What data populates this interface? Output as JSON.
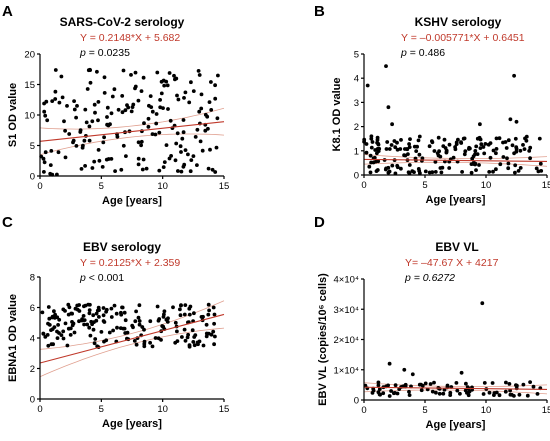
{
  "chart_data": [
    {
      "type": "scatter",
      "panel": "A",
      "title": "SARS-CoV-2 serology",
      "equation": "Y = 0.2148*X + 5.682",
      "p_label": "p",
      "p_rest": " = 0.0235",
      "p_italic_rest": false,
      "xlabel": "Age [years]",
      "ylabel": "S1 OD value",
      "xlim": [
        0,
        15
      ],
      "ylim": [
        0,
        20
      ],
      "xticks": [
        0,
        5,
        10,
        15
      ],
      "yticks": [
        0,
        5,
        10,
        15,
        20
      ],
      "ytick_labels": [
        "0",
        "5",
        "10",
        "15",
        "20"
      ],
      "fit": {
        "slope": 0.2148,
        "intercept": 5.682
      },
      "band_spread": [
        0.9,
        2.2
      ],
      "scatter_seed": 11,
      "n_points": 200,
      "point_y_range": [
        0.2,
        17.5
      ],
      "color_fit": "#c0392b",
      "color_band": "#e0a090"
    },
    {
      "type": "scatter",
      "panel": "B",
      "title": "KSHV serology",
      "equation": "Y = –0.005771*X + 0.6451",
      "p_label": "p",
      "p_rest": " = 0.486",
      "p_italic_rest": false,
      "xlabel": "Age [years]",
      "ylabel": "K8.1 OD value",
      "xlim": [
        0,
        15
      ],
      "ylim": [
        0,
        5
      ],
      "xticks": [
        0,
        5,
        10,
        15
      ],
      "yticks": [
        0,
        1,
        2,
        3,
        4,
        5
      ],
      "ytick_labels": [
        "0",
        "1",
        "2",
        "3",
        "4",
        "5"
      ],
      "fit": {
        "slope": -0.005771,
        "intercept": 0.6451
      },
      "band_spread": [
        0.08,
        0.2
      ],
      "scatter_seed": 23,
      "n_points": 190,
      "point_y_range": [
        0.05,
        1.6
      ],
      "outliers": [
        [
          0.3,
          3.7
        ],
        [
          1.8,
          4.5
        ],
        [
          2.3,
          2.1
        ],
        [
          9.5,
          2.1
        ],
        [
          12.3,
          4.1
        ],
        [
          12.0,
          2.3
        ],
        [
          12.5,
          2.2
        ],
        [
          2.0,
          2.8
        ]
      ],
      "color_fit": "#c0392b",
      "color_band": "#e0a090"
    },
    {
      "type": "scatter",
      "panel": "C",
      "title": "EBV serology",
      "equation": "Y = 0.2125*X + 2.359",
      "p_label": "p",
      "p_rest": " < 0.001",
      "p_italic_rest": false,
      "xlabel": "Age [years]",
      "ylabel": "EBNA1 OD value",
      "xlim": [
        0,
        15
      ],
      "ylim": [
        0,
        8
      ],
      "xticks": [
        0,
        5,
        10,
        15
      ],
      "yticks": [
        0,
        2,
        4,
        6,
        8
      ],
      "ytick_labels": [
        "0",
        "2",
        "4",
        "6",
        "8"
      ],
      "fit": {
        "slope": 0.2125,
        "intercept": 2.359
      },
      "band_spread": [
        0.35,
        0.9
      ],
      "scatter_seed": 37,
      "n_points": 200,
      "point_y_range": [
        3.4,
        6.2
      ],
      "color_fit": "#c0392b",
      "color_band": "#e0a090"
    },
    {
      "type": "scatter",
      "panel": "D",
      "title": "EBV VL",
      "equation": "Y= –47.67 X + 4217",
      "p_label": "p",
      "p_rest": " = 0.6272",
      "p_italic_rest": true,
      "xlabel": "Age [years]",
      "ylabel": "EBV VL (copies/10⁶ cells)",
      "xlim": [
        0,
        15
      ],
      "ylim": [
        0,
        40000
      ],
      "xticks": [
        0,
        5,
        10,
        15
      ],
      "yticks": [
        0,
        10000,
        20000,
        30000,
        40000
      ],
      "ytick_labels": [
        "0",
        "1×10⁴",
        "2×10⁴",
        "3×10⁴",
        "4×10⁴"
      ],
      "fit": {
        "slope": -47.67,
        "intercept": 4217
      },
      "band_spread": [
        600,
        1500
      ],
      "scatter_seed": 53,
      "n_points": 90,
      "point_y_range": [
        1200,
        6000
      ],
      "outliers": [
        [
          9.7,
          32000
        ],
        [
          2.1,
          12000
        ],
        [
          3.3,
          10000
        ],
        [
          4.0,
          8500
        ],
        [
          8.0,
          9000
        ]
      ],
      "color_fit": "#c0392b",
      "color_band": "#e0a090"
    }
  ]
}
